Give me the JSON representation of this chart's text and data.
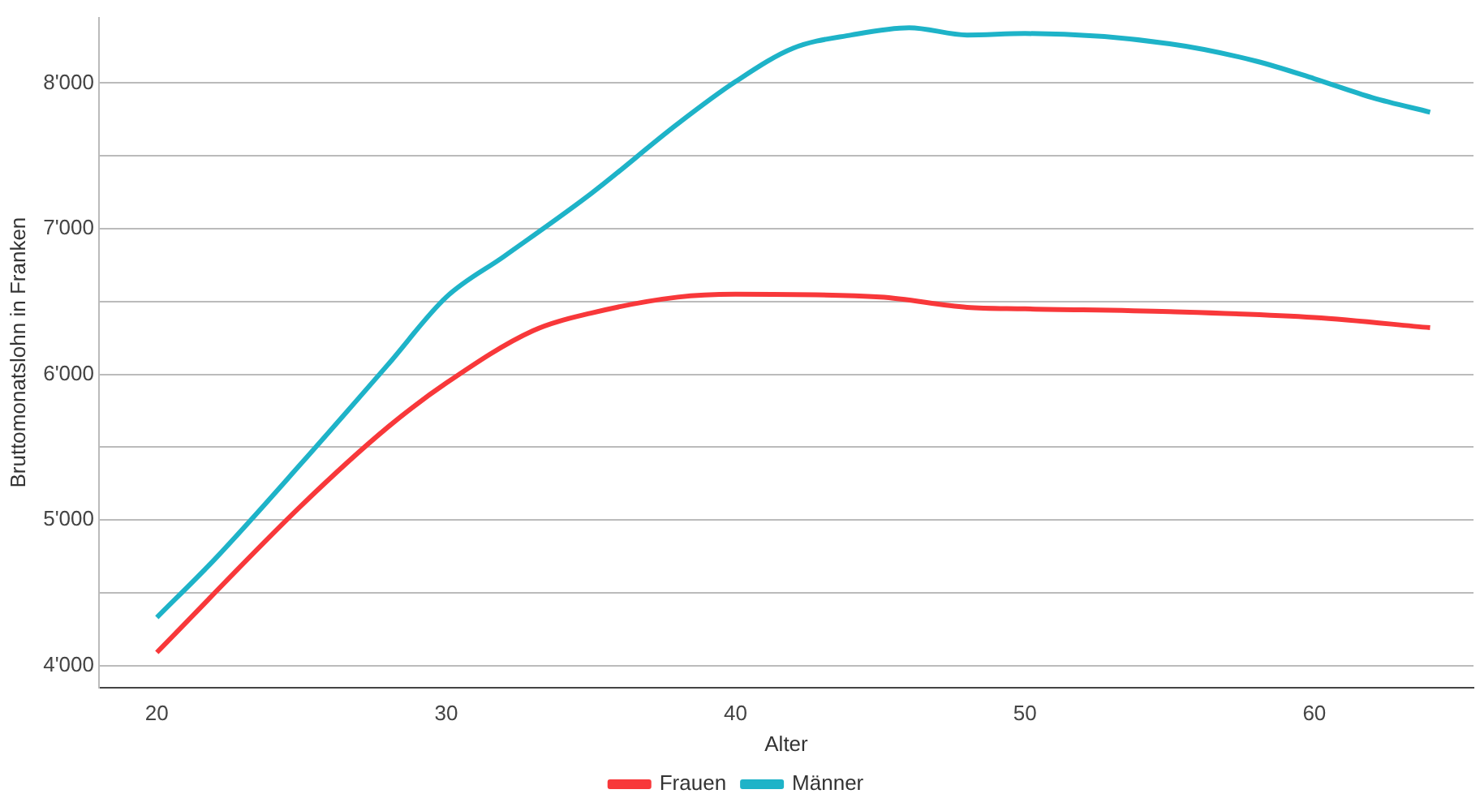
{
  "chart_data": {
    "type": "line",
    "xlabel": "Alter",
    "ylabel": "Bruttomonatslohn in Franken",
    "xlim": [
      18,
      65.5
    ],
    "xticks": [
      20,
      30,
      40,
      50,
      60
    ],
    "ylim": [
      3850,
      8450
    ],
    "yticks": [
      {
        "value": 4000,
        "label": "4'000"
      },
      {
        "value": 4500,
        "label": null
      },
      {
        "value": 5000,
        "label": "5'000"
      },
      {
        "value": 5500,
        "label": null
      },
      {
        "value": 6000,
        "label": "6'000"
      },
      {
        "value": 6500,
        "label": null
      },
      {
        "value": 7000,
        "label": "7'000"
      },
      {
        "value": 7500,
        "label": null
      },
      {
        "value": 8000,
        "label": "8'000"
      }
    ],
    "grid": "y",
    "legend": "bottom",
    "marker": "none",
    "line_style": "solid",
    "series": [
      {
        "name": "Frauen",
        "color": "#f8383a",
        "x": [
          20,
          25,
          28,
          30,
          33,
          35,
          38,
          40,
          45,
          48,
          50,
          55,
          60,
          64
        ],
        "values": [
          4090,
          5100,
          5640,
          5940,
          6300,
          6420,
          6530,
          6550,
          6530,
          6460,
          6450,
          6430,
          6390,
          6320
        ]
      },
      {
        "name": "Männer",
        "color": "#1eb3c8",
        "x": [
          20,
          22,
          25,
          28,
          30,
          32,
          35,
          38,
          40,
          42,
          44,
          46,
          48,
          50,
          55,
          58,
          60,
          62,
          64
        ],
        "values": [
          4330,
          4730,
          5390,
          6070,
          6530,
          6810,
          7240,
          7720,
          8010,
          8240,
          8330,
          8380,
          8330,
          8340,
          8270,
          8150,
          8030,
          7900,
          7800
        ]
      }
    ]
  }
}
